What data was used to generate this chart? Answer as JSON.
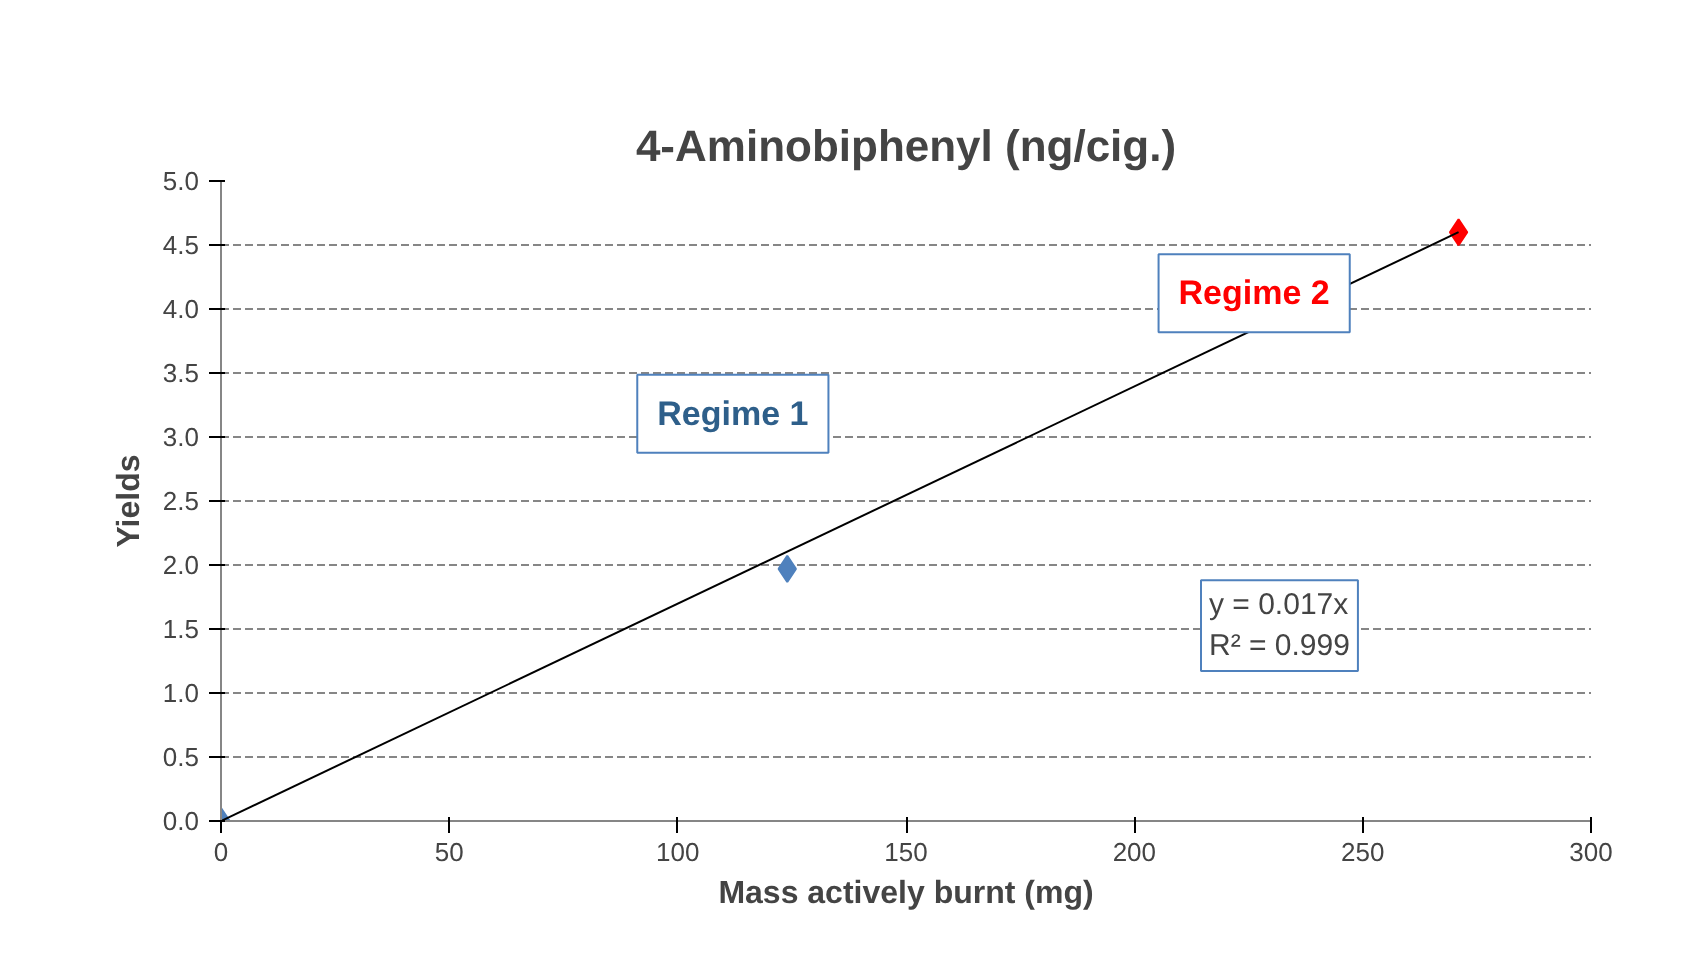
{
  "chart_data": {
    "type": "scatter",
    "title": "4-Aminobiphenyl (ng/cig.)",
    "xlabel": "Mass actively burnt (mg)",
    "ylabel": "Yields",
    "xlim": [
      0,
      300
    ],
    "xticks": [
      0,
      50,
      100,
      150,
      200,
      250,
      300
    ],
    "ylim": [
      0,
      5
    ],
    "yticks": [
      {
        "value": 0,
        "label": "0.0"
      },
      {
        "value": 0.5,
        "label": "0.5"
      },
      {
        "value": 1,
        "label": "1.0"
      },
      {
        "value": 1.5,
        "label": "1.5"
      },
      {
        "value": 2,
        "label": "2.0"
      },
      {
        "value": 2.5,
        "label": "2.5"
      },
      {
        "value": 3,
        "label": "3.0"
      },
      {
        "value": 3.5,
        "label": "3.5"
      },
      {
        "value": 4,
        "label": "4.0"
      },
      {
        "value": 4.5,
        "label": "4.5"
      },
      {
        "value": 5,
        "label": "5.0"
      }
    ],
    "grid": "y",
    "series": [
      {
        "name": "Regime 1",
        "color": "#4f81bd",
        "marker": "diamond",
        "x": [
          0,
          124
        ],
        "values": [
          0,
          1.97
        ]
      },
      {
        "name": "Regime 2",
        "color": "#ff0000",
        "marker": "diamond",
        "x": [
          271
        ],
        "values": [
          4.6
        ]
      },
      {
        "type": "line",
        "color": "#000000",
        "x": [
          0,
          271
        ],
        "values": [
          0,
          4.6
        ]
      }
    ],
    "annotations": [
      "y = 0.017x",
      "R² = 0.999"
    ]
  }
}
